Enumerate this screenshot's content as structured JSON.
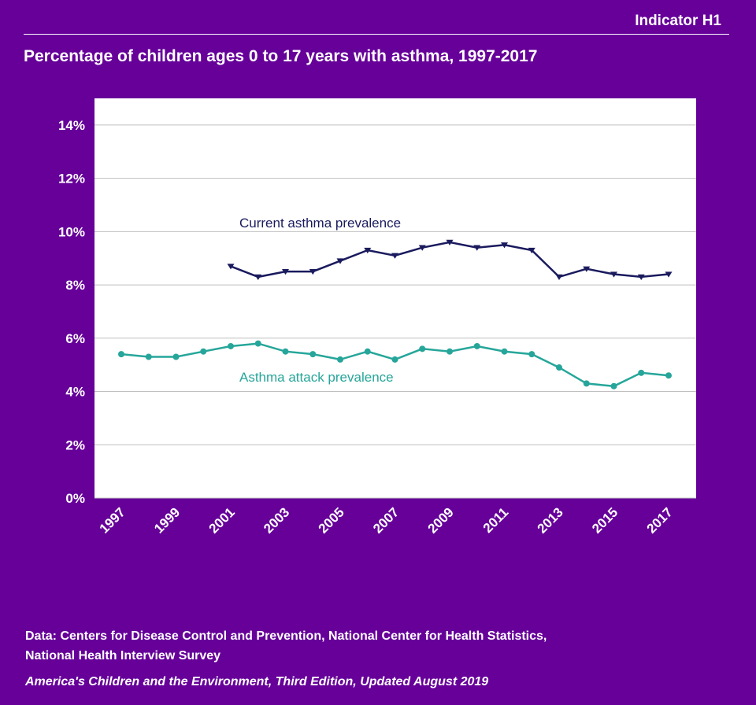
{
  "header": {
    "indicator": "Indicator H1"
  },
  "footer": {
    "source_line1": "Data: Centers for Disease Control and Prevention, National Center for Health Statistics,",
    "source_line2": "National Health Interview Survey",
    "citation": "America's Children and the Environment, Third Edition, Updated August 2019"
  },
  "colors": {
    "background": "#660099",
    "current_series": "#1a1a5e",
    "attack_series": "#26a69a",
    "plot_background": "#ffffff",
    "grid": "#bfbfbf"
  },
  "chart_data": {
    "type": "line",
    "title": "Percentage of children ages 0 to 17 years with asthma, 1997-2017",
    "xlabel": "",
    "ylabel": "",
    "x": [
      1997,
      1998,
      1999,
      2000,
      2001,
      2002,
      2003,
      2004,
      2005,
      2006,
      2007,
      2008,
      2009,
      2010,
      2011,
      2012,
      2013,
      2014,
      2015,
      2016,
      2017
    ],
    "x_tick_labels": [
      "1997",
      "1999",
      "2001",
      "2003",
      "2005",
      "2007",
      "2009",
      "2011",
      "2013",
      "2015",
      "2017"
    ],
    "ylim": [
      0,
      15
    ],
    "y_ticks": [
      0,
      2,
      4,
      6,
      8,
      10,
      12,
      14
    ],
    "y_tick_labels": [
      "0%",
      "2%",
      "4%",
      "6%",
      "8%",
      "10%",
      "12%",
      "14%"
    ],
    "grid": true,
    "legend": "none (series labeled inline)",
    "series": [
      {
        "name": "Current asthma prevalence",
        "marker": "triangle-down",
        "values": [
          null,
          null,
          null,
          null,
          8.7,
          8.3,
          8.5,
          8.5,
          8.9,
          9.3,
          9.1,
          9.4,
          9.6,
          9.4,
          9.5,
          9.3,
          8.3,
          8.6,
          8.4,
          8.3,
          8.4
        ]
      },
      {
        "name": "Asthma attack prevalence",
        "marker": "circle",
        "values": [
          5.4,
          5.3,
          5.3,
          5.5,
          5.7,
          5.8,
          5.5,
          5.4,
          5.2,
          5.5,
          5.2,
          5.6,
          5.5,
          5.7,
          5.5,
          5.4,
          4.9,
          4.3,
          4.2,
          4.7,
          4.6
        ]
      }
    ]
  }
}
